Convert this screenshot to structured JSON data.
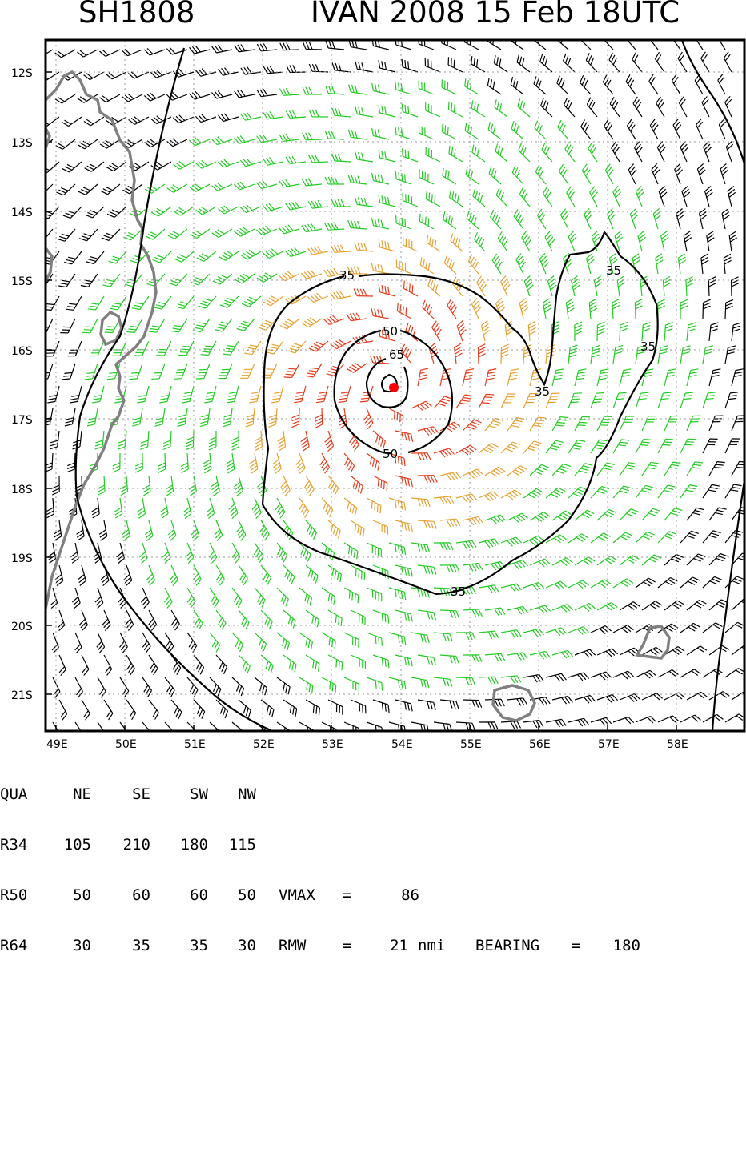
{
  "title": {
    "storm_id": "SH1808",
    "storm_info": "IVAN 2008 15 Feb 18UTC"
  },
  "map": {
    "lat_labels": [
      "12S",
      "13S",
      "14S",
      "15S",
      "16S",
      "17S",
      "18S",
      "19S",
      "20S",
      "21S"
    ],
    "lon_labels": [
      "49E",
      "50E",
      "51E",
      "52E",
      "53E",
      "54E",
      "55E",
      "56E",
      "57E",
      "58E"
    ],
    "contour_labels": [
      "35",
      "35",
      "35",
      "35",
      "50",
      "50",
      "65"
    ],
    "wind_colors": {
      "below_34kt": "#000000",
      "34_to_50kt": "#22cc22",
      "50_to_64kt": "#e8a030",
      "64_plus_kt": "#e83a1a",
      "land": "#808080",
      "center": "#ff0000"
    }
  },
  "table": {
    "header": [
      "QUA",
      "NE",
      "SE",
      "SW",
      "NW"
    ],
    "rows": [
      {
        "label": "R34",
        "values": [
          "105",
          "210",
          "180",
          "115"
        ]
      },
      {
        "label": "R50",
        "values": [
          "50",
          "60",
          "60",
          "50"
        ]
      },
      {
        "label": "R64",
        "values": [
          "30",
          "35",
          "35",
          "30"
        ]
      }
    ],
    "vmax_label": "VMAX",
    "vmax_value": "86",
    "rmw_label": "RMW",
    "rmw_value": "21",
    "rmw_unit": "nmi",
    "bearing_label": "BEARING",
    "bearing_value": "180"
  }
}
